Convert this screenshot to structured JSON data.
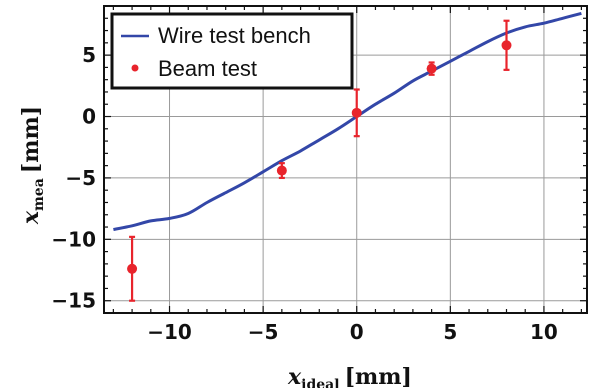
{
  "chart_data": {
    "type": "line",
    "xlabel": {
      "symbol": "x",
      "subscript": "ideal",
      "unit": "[mm]"
    },
    "ylabel": {
      "symbol": "x",
      "subscript": "mea",
      "unit": "[mm]"
    },
    "xlim": [
      -13.5,
      12.3
    ],
    "ylim": [
      -16,
      9
    ],
    "xticks": [
      -10,
      -5,
      0,
      5,
      10
    ],
    "yticks": [
      -15,
      -10,
      -5,
      0,
      5
    ],
    "xtick_labels": [
      "−10",
      "−5",
      "0",
      "5",
      "10"
    ],
    "ytick_labels": [
      "−15",
      "−10",
      "−5",
      "0",
      "5"
    ],
    "grid": true,
    "legend_position": "top-left",
    "series": [
      {
        "name": "Wire test bench",
        "kind": "line",
        "color": "#3347a8",
        "points": [
          [
            -13,
            -9.2
          ],
          [
            -12,
            -8.9
          ],
          [
            -11,
            -8.5
          ],
          [
            -10,
            -8.3
          ],
          [
            -9,
            -7.9
          ],
          [
            -8,
            -7.0
          ],
          [
            -7,
            -6.2
          ],
          [
            -6,
            -5.4
          ],
          [
            -5,
            -4.5
          ],
          [
            -4,
            -3.6
          ],
          [
            -3,
            -2.8
          ],
          [
            -2,
            -1.9
          ],
          [
            -1,
            -1.0
          ],
          [
            0,
            0.0
          ],
          [
            1,
            1.0
          ],
          [
            2,
            1.9
          ],
          [
            3,
            2.9
          ],
          [
            4,
            3.7
          ],
          [
            5,
            4.5
          ],
          [
            6,
            5.3
          ],
          [
            7,
            6.1
          ],
          [
            8,
            6.8
          ],
          [
            9,
            7.3
          ],
          [
            10,
            7.6
          ],
          [
            11,
            8.0
          ],
          [
            12,
            8.4
          ]
        ]
      },
      {
        "name": "Beam test",
        "kind": "errorbar",
        "color": "#e8242c",
        "points": [
          {
            "x": -12,
            "y": -12.4,
            "err": 2.6
          },
          {
            "x": -4,
            "y": -4.4,
            "err": 0.6
          },
          {
            "x": 0,
            "y": 0.3,
            "err": 1.9
          },
          {
            "x": 4,
            "y": 3.9,
            "err": 0.5
          },
          {
            "x": 8,
            "y": 5.8,
            "err": 2.0
          }
        ]
      }
    ]
  }
}
